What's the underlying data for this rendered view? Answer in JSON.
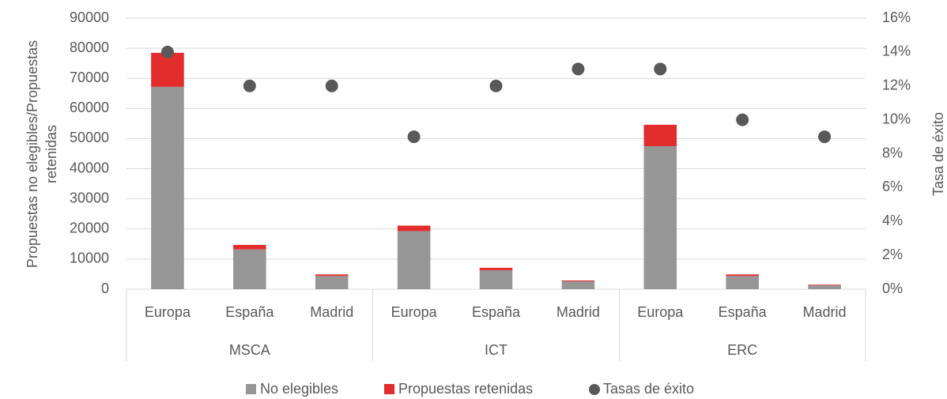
{
  "chart_data": {
    "type": "bar",
    "categories": [
      "Europa",
      "España",
      "Madrid",
      "Europa",
      "España",
      "Madrid",
      "Europa",
      "España",
      "Madrid"
    ],
    "groups": [
      "MSCA",
      "ICT",
      "ERC"
    ],
    "series": [
      {
        "name": "No elegibles",
        "color": "#969696",
        "values": [
          67200,
          13200,
          4400,
          19300,
          6300,
          2600,
          47500,
          4400,
          1300
        ]
      },
      {
        "name": "Propuestas retenidas",
        "color": "#e32c2c",
        "values": [
          11300,
          1500,
          500,
          1800,
          800,
          300,
          7100,
          500,
          200
        ]
      },
      {
        "name": "Tasas de éxito",
        "color": "#595959",
        "type": "scatter",
        "axis": "y2",
        "values": [
          14,
          12,
          12,
          9,
          12,
          13,
          13,
          10,
          9
        ]
      }
    ],
    "ylabel": [
      "Propuestas no elegibles/Propuestas",
      "retenidas"
    ],
    "y2label": "Tasa de éxito",
    "ylim": [
      0,
      90000
    ],
    "yticks": [
      0,
      10000,
      20000,
      30000,
      40000,
      50000,
      60000,
      70000,
      80000,
      90000
    ],
    "y2lim": [
      0,
      16
    ],
    "y2ticks": [
      {
        "value": 0,
        "label": "0%"
      },
      {
        "value": 2,
        "label": "2%"
      },
      {
        "value": 4,
        "label": "4%"
      },
      {
        "value": 6,
        "label": "6%"
      },
      {
        "value": 8,
        "label": "8%"
      },
      {
        "value": 10,
        "label": "10%"
      },
      {
        "value": 12,
        "label": "12%"
      },
      {
        "value": 14,
        "label": "14%"
      },
      {
        "value": 16,
        "label": "16%"
      }
    ],
    "grid": true,
    "legend": "bottom"
  }
}
